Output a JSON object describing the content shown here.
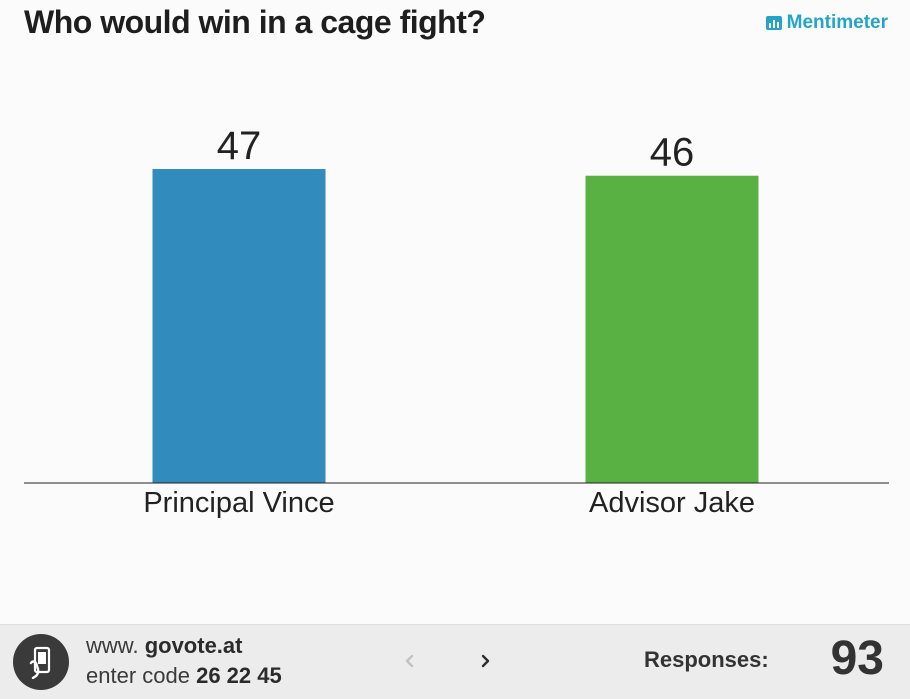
{
  "header": {
    "title": "Who would win in a cage fight?",
    "brand": "Mentimeter"
  },
  "chart_data": {
    "type": "bar",
    "categories": [
      "Principal Vince",
      "Advisor Jake"
    ],
    "values": [
      47,
      46
    ],
    "colors": [
      "#318bbd",
      "#5ab143"
    ],
    "title": "Who would win in a cage fight?",
    "xlabel": "",
    "ylabel": "",
    "grid": false
  },
  "footer": {
    "url_prefix": "www.",
    "url_domain": "govote.at",
    "code_prefix": "enter code",
    "code": "26 22 45",
    "prev_icon": "chevron-left-icon",
    "next_icon": "chevron-right-icon",
    "responses_label": "Responses:",
    "responses_count": "93"
  },
  "colors": {
    "brand": "#25a4c8",
    "background": "#fbfbfb",
    "footer_bg": "#ececec"
  }
}
